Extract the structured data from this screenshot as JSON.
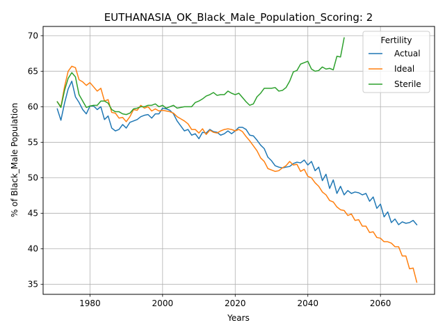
{
  "chart_data": {
    "type": "line",
    "title": "EUTHANASIA_OK_Black_Male_Population_Scoring: 2",
    "xlabel": "Years",
    "ylabel": "% of Black_Male Population",
    "xlim": [
      1967.1,
      2074.9
    ],
    "ylim": [
      33.6,
      71.3
    ],
    "xticks": [
      1980,
      2000,
      2020,
      2040,
      2060
    ],
    "yticks": [
      35,
      40,
      45,
      50,
      55,
      60,
      65,
      70
    ],
    "grid": true,
    "legend": {
      "title": "Fertility",
      "position": "top-right"
    },
    "series": [
      {
        "name": "Actual",
        "color": "#1f77b4",
        "x": [
          1971,
          1972,
          1973,
          1974,
          1975,
          1976,
          1977,
          1978,
          1979,
          1980,
          1981,
          1982,
          1983,
          1984,
          1985,
          1986,
          1987,
          1988,
          1989,
          1990,
          1991,
          1992,
          1993,
          1994,
          1995,
          1996,
          1997,
          1998,
          1999,
          2000,
          2001,
          2002,
          2003,
          2004,
          2005,
          2006,
          2007,
          2008,
          2009,
          2010,
          2011,
          2012,
          2013,
          2014,
          2015,
          2016,
          2017,
          2018,
          2019,
          2020,
          2021,
          2022,
          2023,
          2024,
          2025,
          2026,
          2027,
          2028,
          2029,
          2030,
          2031,
          2032,
          2033,
          2034,
          2035,
          2036,
          2037,
          2038,
          2039,
          2040,
          2041,
          2042,
          2043,
          2044,
          2045,
          2046,
          2047,
          2048,
          2049,
          2050,
          2051,
          2052,
          2053,
          2054,
          2055,
          2056,
          2057,
          2058,
          2059,
          2060,
          2061,
          2062,
          2063,
          2064,
          2065,
          2066,
          2067,
          2068,
          2069,
          2070
        ],
        "values": [
          59.7,
          58.1,
          60.5,
          62.5,
          63.6,
          61.4,
          60.6,
          59.6,
          59.0,
          60.1,
          60.1,
          59.6,
          60.0,
          58.2,
          58.7,
          57.0,
          56.6,
          56.8,
          57.5,
          57.0,
          57.8,
          58.0,
          58.2,
          58.6,
          58.8,
          58.9,
          58.4,
          59.0,
          59.0,
          59.8,
          59.7,
          59.5,
          59.0,
          58.0,
          57.3,
          56.6,
          56.8,
          56.0,
          56.2,
          55.5,
          56.4,
          56.3,
          56.8,
          56.5,
          56.4,
          56.0,
          56.2,
          56.6,
          56.2,
          56.6,
          57.1,
          57.1,
          56.8,
          56.0,
          55.9,
          55.3,
          54.6,
          54.1,
          52.9,
          52.4,
          51.7,
          51.5,
          51.4,
          51.5,
          51.6,
          52.0,
          52.2,
          52.1,
          52.5,
          51.8,
          52.3,
          51.0,
          51.5,
          49.6,
          50.5,
          48.5,
          49.7,
          47.8,
          48.8,
          47.6,
          48.2,
          47.8,
          48.0,
          47.9,
          47.6,
          47.8,
          46.7,
          47.3,
          45.7,
          46.3,
          44.5,
          45.2,
          43.7,
          44.2,
          43.4,
          43.8,
          43.6,
          43.7,
          44.0,
          43.4
        ]
      },
      {
        "name": "Ideal",
        "color": "#ff7f0e",
        "x": [
          1971,
          1972,
          1973,
          1974,
          1975,
          1976,
          1977,
          1978,
          1979,
          1980,
          1981,
          1982,
          1983,
          1984,
          1985,
          1986,
          1987,
          1988,
          1989,
          1990,
          1991,
          1992,
          1993,
          1994,
          1995,
          1996,
          1997,
          1998,
          1999,
          2000,
          2001,
          2002,
          2003,
          2004,
          2005,
          2006,
          2007,
          2008,
          2009,
          2010,
          2011,
          2012,
          2013,
          2014,
          2015,
          2016,
          2017,
          2018,
          2019,
          2020,
          2021,
          2022,
          2023,
          2024,
          2025,
          2026,
          2027,
          2028,
          2029,
          2030,
          2031,
          2032,
          2033,
          2034,
          2035,
          2036,
          2037,
          2038,
          2039,
          2040,
          2041,
          2042,
          2043,
          2044,
          2045,
          2046,
          2047,
          2048,
          2049,
          2050,
          2051,
          2052,
          2053,
          2054,
          2055,
          2056,
          2057,
          2058,
          2059,
          2060,
          2061,
          2062,
          2063,
          2064,
          2065,
          2066,
          2067,
          2068,
          2069,
          2070
        ],
        "values": [
          60.7,
          60.0,
          62.8,
          65.0,
          65.7,
          65.5,
          63.8,
          63.5,
          63.0,
          63.4,
          62.8,
          62.2,
          62.6,
          60.8,
          61.0,
          59.2,
          59.1,
          58.4,
          58.5,
          57.9,
          58.6,
          59.6,
          59.5,
          60.2,
          59.8,
          60.0,
          59.4,
          59.7,
          59.4,
          59.5,
          59.4,
          59.3,
          59.1,
          58.6,
          58.3,
          58.0,
          57.6,
          56.8,
          56.8,
          56.3,
          56.9,
          56.1,
          56.7,
          56.4,
          56.3,
          56.6,
          56.8,
          56.9,
          56.8,
          56.6,
          56.8,
          56.5,
          55.8,
          55.2,
          54.5,
          53.8,
          52.8,
          52.3,
          51.3,
          51.1,
          50.9,
          51.0,
          51.4,
          51.7,
          52.3,
          51.8,
          51.9,
          50.9,
          51.2,
          50.2,
          50.0,
          49.3,
          48.8,
          48.0,
          47.6,
          46.8,
          46.6,
          45.9,
          45.5,
          45.4,
          44.7,
          44.9,
          44.0,
          44.1,
          43.2,
          43.2,
          42.3,
          42.4,
          41.6,
          41.5,
          41.0,
          41.0,
          40.8,
          40.3,
          40.3,
          39.0,
          39.0,
          37.2,
          37.3,
          35.3
        ]
      },
      {
        "name": "Sterile",
        "color": "#2ca02c",
        "x": [
          1971,
          1972,
          1973,
          1974,
          1975,
          1976,
          1977,
          1978,
          1979,
          1980,
          1981,
          1982,
          1983,
          1984,
          1985,
          1986,
          1987,
          1988,
          1989,
          1990,
          1991,
          1992,
          1993,
          1994,
          1995,
          1996,
          1997,
          1998,
          1999,
          2000,
          2001,
          2002,
          2003,
          2004,
          2005,
          2006,
          2007,
          2008,
          2009,
          2010,
          2011,
          2012,
          2013,
          2014,
          2015,
          2016,
          2017,
          2018,
          2019,
          2020,
          2021,
          2022,
          2023,
          2024,
          2025,
          2026,
          2027,
          2028,
          2029,
          2030,
          2031,
          2032,
          2033,
          2034,
          2035,
          2036,
          2037,
          2038,
          2039,
          2040,
          2041,
          2042,
          2043,
          2044,
          2045,
          2046,
          2047,
          2048,
          2049,
          2050
        ],
        "values": [
          60.7,
          59.9,
          62.3,
          64.0,
          64.8,
          64.2,
          61.7,
          60.8,
          59.9,
          60.1,
          60.2,
          60.2,
          60.8,
          60.8,
          60.5,
          59.6,
          59.3,
          59.3,
          59.0,
          58.9,
          59.1,
          59.7,
          59.8,
          60.0,
          60.0,
          60.2,
          60.2,
          60.4,
          60.0,
          60.2,
          59.8,
          60.0,
          60.2,
          59.8,
          59.9,
          60.0,
          60.0,
          60.0,
          60.6,
          60.8,
          61.1,
          61.5,
          61.7,
          62.0,
          61.6,
          61.7,
          61.7,
          62.2,
          61.9,
          61.7,
          61.9,
          61.3,
          60.7,
          60.2,
          60.4,
          61.4,
          61.9,
          62.6,
          62.6,
          62.6,
          62.7,
          62.2,
          62.3,
          62.7,
          63.6,
          64.9,
          65.1,
          66.0,
          66.2,
          66.4,
          65.3,
          65.0,
          65.1,
          65.6,
          65.3,
          65.4,
          65.2,
          67.1,
          67.0,
          69.7
        ]
      }
    ]
  }
}
